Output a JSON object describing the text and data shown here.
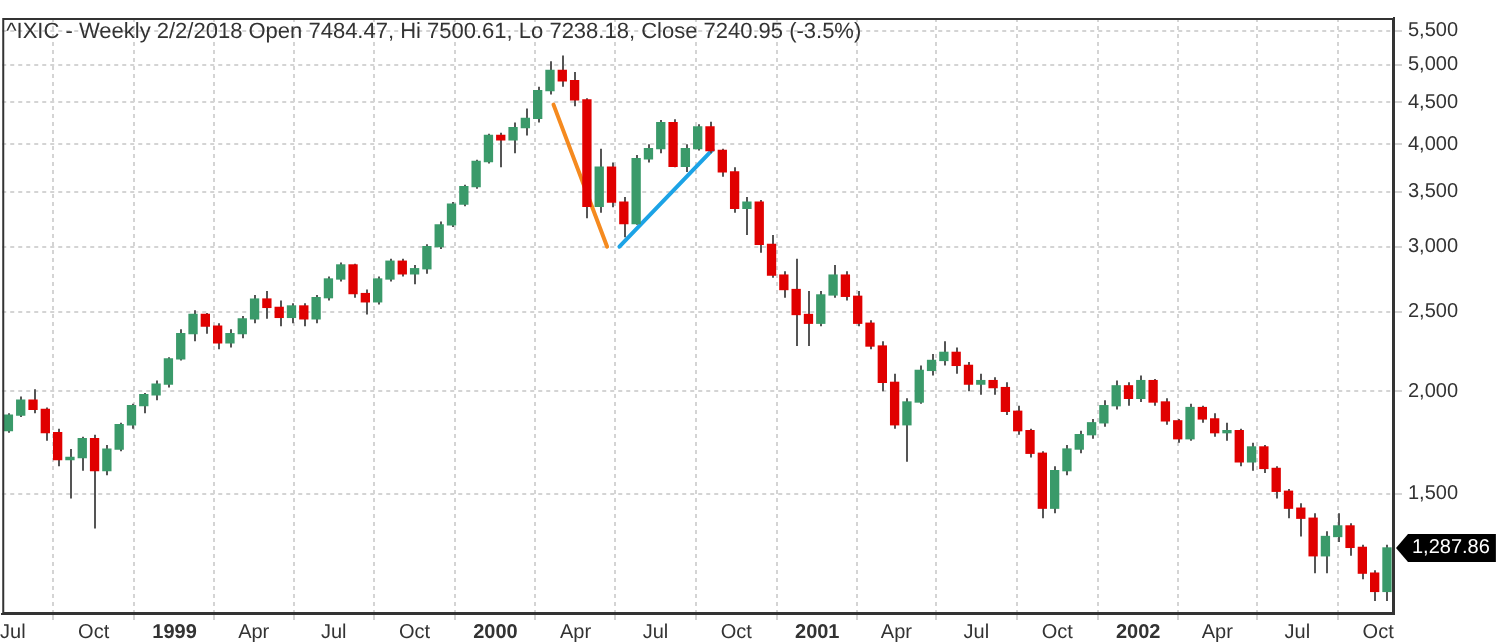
{
  "chart_data": {
    "type": "candlestick",
    "title": "^IXIC - Weekly 2/2/2018 Open 7484.47, Hi 7500.61, Lo 7238.18, Close 7240.95 (-3.5%)",
    "x": [
      "1998-06-26",
      "1998-07-10",
      "1998-07-24",
      "1998-08-07",
      "1998-08-21",
      "1998-09-04",
      "1998-09-18",
      "1998-10-02",
      "1998-10-16",
      "1998-10-30",
      "1998-11-13",
      "1998-11-27",
      "1998-12-11",
      "1998-12-25",
      "1999-01-08",
      "1999-01-22",
      "1999-02-05",
      "1999-02-19",
      "1999-03-05",
      "1999-03-19",
      "1999-04-02",
      "1999-04-16",
      "1999-04-30",
      "1999-05-14",
      "1999-05-28",
      "1999-06-11",
      "1999-06-25",
      "1999-07-09",
      "1999-07-23",
      "1999-08-06",
      "1999-08-20",
      "1999-09-03",
      "1999-09-17",
      "1999-10-01",
      "1999-10-15",
      "1999-10-29",
      "1999-11-12",
      "1999-11-26",
      "1999-12-10",
      "1999-12-24",
      "2000-01-07",
      "2000-01-21",
      "2000-02-04",
      "2000-02-18",
      "2000-03-03",
      "2000-03-17",
      "2000-03-31",
      "2000-04-14",
      "2000-04-28",
      "2000-05-12",
      "2000-05-26",
      "2000-06-09",
      "2000-06-23",
      "2000-07-07",
      "2000-07-21",
      "2000-08-04",
      "2000-08-18",
      "2000-09-01",
      "2000-09-15",
      "2000-09-29",
      "2000-10-13",
      "2000-10-27",
      "2000-11-10",
      "2000-11-24",
      "2000-12-08",
      "2000-12-22",
      "2001-01-05",
      "2001-01-19",
      "2001-02-02",
      "2001-02-16",
      "2001-03-02",
      "2001-03-16",
      "2001-03-30",
      "2001-04-13",
      "2001-04-27",
      "2001-05-11",
      "2001-05-25",
      "2001-06-08",
      "2001-06-22",
      "2001-07-06",
      "2001-07-20",
      "2001-08-03",
      "2001-08-17",
      "2001-08-31",
      "2001-09-14",
      "2001-09-28",
      "2001-10-12",
      "2001-10-26",
      "2001-11-09",
      "2001-11-23",
      "2001-12-07",
      "2001-12-21",
      "2002-01-04",
      "2002-01-18",
      "2002-02-01",
      "2002-02-15",
      "2002-03-01",
      "2002-03-15",
      "2002-03-29",
      "2002-04-12",
      "2002-04-26",
      "2002-05-10",
      "2002-05-24",
      "2002-06-07",
      "2002-06-21",
      "2002-07-05",
      "2002-07-19",
      "2002-08-02",
      "2002-08-16",
      "2002-08-30",
      "2002-09-13",
      "2002-09-27",
      "2002-10-11"
    ],
    "ohlc": [
      [
        1790,
        1880,
        1780,
        1870
      ],
      [
        1870,
        1970,
        1860,
        1950
      ],
      [
        1950,
        2010,
        1880,
        1900
      ],
      [
        1900,
        1910,
        1740,
        1780
      ],
      [
        1780,
        1800,
        1620,
        1650
      ],
      [
        1650,
        1700,
        1480,
        1660
      ],
      [
        1660,
        1760,
        1600,
        1750
      ],
      [
        1750,
        1770,
        1360,
        1600
      ],
      [
        1600,
        1720,
        1580,
        1700
      ],
      [
        1700,
        1830,
        1690,
        1820
      ],
      [
        1820,
        1930,
        1800,
        1920
      ],
      [
        1920,
        1990,
        1880,
        1980
      ],
      [
        1980,
        2060,
        1950,
        2040
      ],
      [
        2040,
        2200,
        2020,
        2190
      ],
      [
        2190,
        2380,
        2180,
        2350
      ],
      [
        2350,
        2510,
        2300,
        2480
      ],
      [
        2480,
        2490,
        2350,
        2400
      ],
      [
        2400,
        2420,
        2250,
        2290
      ],
      [
        2290,
        2380,
        2260,
        2350
      ],
      [
        2350,
        2470,
        2320,
        2450
      ],
      [
        2450,
        2620,
        2420,
        2590
      ],
      [
        2590,
        2650,
        2450,
        2530
      ],
      [
        2530,
        2580,
        2400,
        2460
      ],
      [
        2460,
        2560,
        2420,
        2540
      ],
      [
        2540,
        2560,
        2400,
        2450
      ],
      [
        2450,
        2620,
        2420,
        2600
      ],
      [
        2600,
        2760,
        2580,
        2740
      ],
      [
        2740,
        2870,
        2720,
        2850
      ],
      [
        2850,
        2860,
        2600,
        2630
      ],
      [
        2630,
        2660,
        2480,
        2570
      ],
      [
        2570,
        2760,
        2550,
        2740
      ],
      [
        2740,
        2900,
        2720,
        2880
      ],
      [
        2880,
        2900,
        2760,
        2780
      ],
      [
        2780,
        2850,
        2700,
        2820
      ],
      [
        2820,
        3020,
        2780,
        3000
      ],
      [
        3000,
        3220,
        2980,
        3190
      ],
      [
        3190,
        3400,
        3170,
        3380
      ],
      [
        3380,
        3570,
        3360,
        3550
      ],
      [
        3550,
        3830,
        3530,
        3810
      ],
      [
        3810,
        4120,
        3790,
        4100
      ],
      [
        4100,
        4130,
        3750,
        4050
      ],
      [
        4050,
        4250,
        3900,
        4190
      ],
      [
        4190,
        4420,
        4100,
        4300
      ],
      [
        4300,
        4700,
        4250,
        4650
      ],
      [
        4650,
        5050,
        4600,
        4920
      ],
      [
        4920,
        5130,
        4700,
        4780
      ],
      [
        4780,
        4900,
        4450,
        4530
      ],
      [
        4530,
        4550,
        3250,
        3360
      ],
      [
        3360,
        3950,
        3300,
        3750
      ],
      [
        3750,
        3800,
        3350,
        3400
      ],
      [
        3400,
        3450,
        3080,
        3200
      ],
      [
        3200,
        3880,
        3190,
        3840
      ],
      [
        3840,
        4000,
        3800,
        3950
      ],
      [
        3950,
        4280,
        3900,
        4250
      ],
      [
        4250,
        4290,
        3750,
        3760
      ],
      [
        3760,
        4000,
        3700,
        3950
      ],
      [
        3950,
        4230,
        3930,
        4200
      ],
      [
        4200,
        4260,
        3900,
        3930
      ],
      [
        3930,
        3950,
        3650,
        3700
      ],
      [
        3700,
        3750,
        3300,
        3340
      ],
      [
        3340,
        3450,
        3100,
        3400
      ],
      [
        3400,
        3420,
        2950,
        3020
      ],
      [
        3020,
        3100,
        2750,
        2770
      ],
      [
        2770,
        2800,
        2600,
        2660
      ],
      [
        2660,
        2900,
        2270,
        2480
      ],
      [
        2480,
        2650,
        2270,
        2420
      ],
      [
        2420,
        2650,
        2400,
        2620
      ],
      [
        2620,
        2850,
        2600,
        2770
      ],
      [
        2770,
        2800,
        2580,
        2610
      ],
      [
        2610,
        2650,
        2400,
        2420
      ],
      [
        2420,
        2440,
        2250,
        2270
      ],
      [
        2270,
        2300,
        2000,
        2050
      ],
      [
        2050,
        2100,
        1800,
        1820
      ],
      [
        1820,
        1960,
        1640,
        1940
      ],
      [
        1940,
        2150,
        1930,
        2120
      ],
      [
        2120,
        2220,
        2090,
        2180
      ],
      [
        2180,
        2300,
        2150,
        2230
      ],
      [
        2230,
        2260,
        2100,
        2150
      ],
      [
        2150,
        2170,
        2000,
        2040
      ],
      [
        2040,
        2100,
        1980,
        2060
      ],
      [
        2060,
        2080,
        1980,
        2020
      ],
      [
        2020,
        2050,
        1870,
        1890
      ],
      [
        1890,
        1920,
        1770,
        1790
      ],
      [
        1790,
        1800,
        1660,
        1680
      ],
      [
        1680,
        1690,
        1400,
        1440
      ],
      [
        1440,
        1620,
        1420,
        1600
      ],
      [
        1600,
        1720,
        1580,
        1700
      ],
      [
        1700,
        1790,
        1680,
        1770
      ],
      [
        1770,
        1850,
        1750,
        1830
      ],
      [
        1830,
        1950,
        1810,
        1920
      ],
      [
        1920,
        2060,
        1900,
        2030
      ],
      [
        2030,
        2050,
        1920,
        1960
      ],
      [
        1960,
        2090,
        1940,
        2060
      ],
      [
        2060,
        2070,
        1920,
        1940
      ],
      [
        1940,
        1960,
        1820,
        1840
      ],
      [
        1840,
        1850,
        1730,
        1750
      ],
      [
        1750,
        1930,
        1740,
        1910
      ],
      [
        1910,
        1920,
        1830,
        1850
      ],
      [
        1850,
        1880,
        1760,
        1780
      ],
      [
        1780,
        1830,
        1740,
        1790
      ],
      [
        1790,
        1800,
        1620,
        1640
      ],
      [
        1640,
        1730,
        1600,
        1710
      ],
      [
        1710,
        1720,
        1590,
        1610
      ],
      [
        1610,
        1620,
        1480,
        1510
      ],
      [
        1510,
        1520,
        1400,
        1440
      ],
      [
        1440,
        1460,
        1330,
        1400
      ],
      [
        1400,
        1420,
        1200,
        1260
      ],
      [
        1260,
        1350,
        1200,
        1330
      ],
      [
        1330,
        1420,
        1310,
        1370
      ],
      [
        1370,
        1380,
        1260,
        1290
      ],
      [
        1290,
        1300,
        1180,
        1200
      ],
      [
        1200,
        1210,
        1110,
        1140
      ],
      [
        1140,
        1300,
        1110,
        1287.86
      ]
    ],
    "series": [
      {
        "type": "line",
        "color": "#f58a1f",
        "x": [
          "2000-03-07",
          "2000-05-07"
        ],
        "values": [
          4470,
          3000
        ]
      },
      {
        "type": "line",
        "color": "#1ca3e6",
        "x": [
          "2000-05-21",
          "2000-09-04"
        ],
        "values": [
          3000,
          3940
        ]
      }
    ],
    "xlim": [
      "1998-06-19",
      "2002-10-19"
    ],
    "xticks": [
      {
        "value": "1998-07-01",
        "label": "Jul"
      },
      {
        "value": "1998-10-01",
        "label": "Oct"
      },
      {
        "value": "1999-01-01",
        "label": "1999"
      },
      {
        "value": "1999-04-01",
        "label": "Apr"
      },
      {
        "value": "1999-07-01",
        "label": "Jul"
      },
      {
        "value": "1999-10-01",
        "label": "Oct"
      },
      {
        "value": "2000-01-01",
        "label": "2000"
      },
      {
        "value": "2000-04-01",
        "label": "Apr"
      },
      {
        "value": "2000-07-01",
        "label": "Jul"
      },
      {
        "value": "2000-10-01",
        "label": "Oct"
      },
      {
        "value": "2001-01-01",
        "label": "2001"
      },
      {
        "value": "2001-04-01",
        "label": "Apr"
      },
      {
        "value": "2001-07-01",
        "label": "Jul"
      },
      {
        "value": "2001-10-01",
        "label": "Oct"
      },
      {
        "value": "2002-01-01",
        "label": "2002"
      },
      {
        "value": "2002-04-01",
        "label": "Apr"
      },
      {
        "value": "2002-07-01",
        "label": "Jul"
      },
      {
        "value": "2002-10-01",
        "label": "Oct"
      }
    ],
    "ylim": [
      1070,
      5700
    ],
    "yticks": [
      {
        "value": 1500,
        "label": "1,500"
      },
      {
        "value": 2000,
        "label": "2,000"
      },
      {
        "value": 2500,
        "label": "2,500"
      },
      {
        "value": 3000,
        "label": "3,000"
      },
      {
        "value": 3500,
        "label": "3,500"
      },
      {
        "value": 4000,
        "label": "4,000"
      },
      {
        "value": 4500,
        "label": "4,500"
      },
      {
        "value": 5000,
        "label": "5,000"
      },
      {
        "value": 5500,
        "label": "5,500"
      }
    ],
    "log": "y",
    "grid": true,
    "annotations": [
      {
        "text": "1,287.86",
        "x": "2002-10-11",
        "y": 1287.86
      }
    ]
  }
}
